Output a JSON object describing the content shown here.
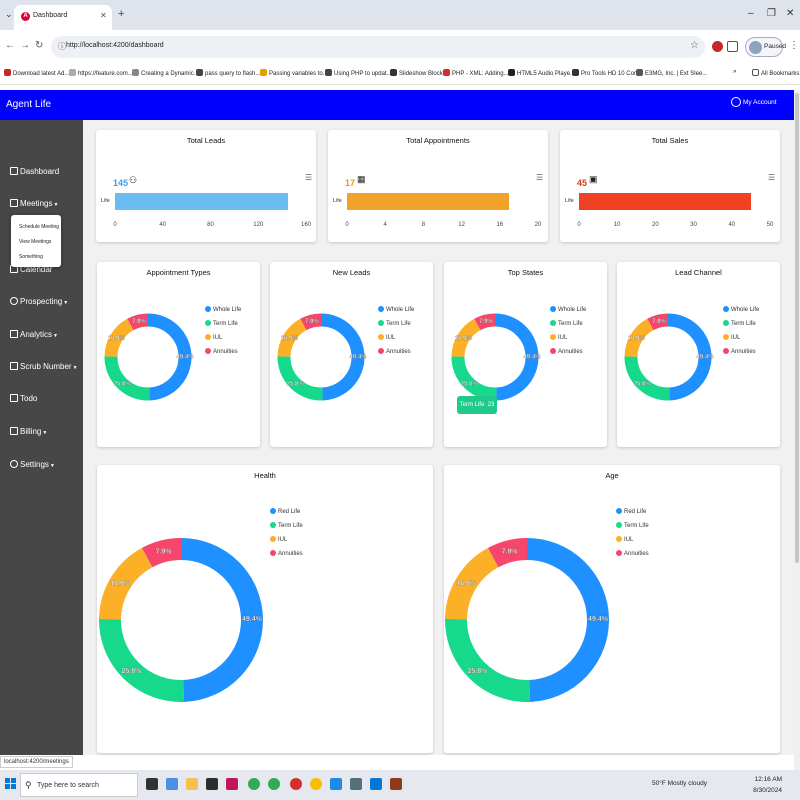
{
  "browser": {
    "tab_title": "Dashboard",
    "url": "http://localhost:4200/dashboard",
    "profile_label": "Paused",
    "bookmarks": [
      "Download latest Ad...",
      "https://feature.com...",
      "Creating a Dynamic...",
      "pass query to flash...",
      "Passing variables to...",
      "Using PHP to updat...",
      "Slideshow Blocks",
      "PHP - XML: Adding...",
      "HTML5 Audio Playe...",
      "Pro Tools HD 10 Cor...",
      "E3MG, Inc. | Ext Slee..."
    ],
    "all_bookmarks": "All Bookmarks",
    "status_url": "localhost:4200/meetings"
  },
  "app": {
    "title": "Agent Life",
    "account": "My Account"
  },
  "sidebar": {
    "items": [
      {
        "label": "Dashboard",
        "caret": false
      },
      {
        "label": "Meetings",
        "caret": true
      },
      {
        "label": "Calendar",
        "caret": false
      },
      {
        "label": "Prospecting",
        "caret": true
      },
      {
        "label": "Analytics",
        "caret": true
      },
      {
        "label": "Scrub Number",
        "caret": true
      },
      {
        "label": "Todo",
        "caret": false
      },
      {
        "label": "Billing",
        "caret": true
      },
      {
        "label": "Settings",
        "caret": true
      }
    ],
    "dropdown": [
      "Schedule Meeting",
      "View Meetings",
      "Something"
    ]
  },
  "kpis": [
    {
      "title": "Total Leads",
      "value": "145",
      "color": "#6bbcf0",
      "num_color": "#3d9ee0",
      "icon": "add-user-icon",
      "category": "Life"
    },
    {
      "title": "Total Appointments",
      "value": "17",
      "color": "#f2a22a",
      "num_color": "#e49a1a",
      "icon": "table-icon",
      "category": "Life"
    },
    {
      "title": "Total Sales",
      "value": "45",
      "color": "#ef4124",
      "num_color": "#d63a1f",
      "icon": "image-icon",
      "category": "Life"
    }
  ],
  "donut_legend_colors": [
    "#1e90ff",
    "#16d98c",
    "#fbb028",
    "#f7466b"
  ],
  "donut_legend_labels": [
    "Whole Life",
    "Term Life",
    "IUL",
    "Annuities"
  ],
  "big_legend_labels": [
    "Red Life",
    "Term Life",
    "IUL",
    "Annuities"
  ],
  "tooltip": {
    "label": "Term Life",
    "value": "23"
  },
  "taskbar": {
    "search_placeholder": "Type here to search",
    "weather": "50°F  Mostly cloudy",
    "time": "12:16 AM",
    "date": "8/30/2024"
  },
  "chart_data": [
    {
      "type": "bar",
      "title": "Total Leads",
      "categories": [
        "Life"
      ],
      "values": [
        145
      ],
      "xlim": [
        0,
        160
      ],
      "ticks": [
        0,
        40,
        80,
        120,
        160
      ]
    },
    {
      "type": "bar",
      "title": "Total Appointments",
      "categories": [
        "Life"
      ],
      "values": [
        17
      ],
      "xlim": [
        0,
        20
      ],
      "ticks": [
        0,
        4,
        8,
        12,
        16,
        20
      ]
    },
    {
      "type": "bar",
      "title": "Total Sales",
      "categories": [
        "Life"
      ],
      "values": [
        45
      ],
      "xlim": [
        0,
        50
      ],
      "ticks": [
        0,
        10,
        20,
        30,
        40,
        50
      ]
    },
    {
      "type": "pie",
      "title": "Appointment Types",
      "categories": [
        "Whole Life",
        "Term Life",
        "IUL",
        "Annuities"
      ],
      "values": [
        49.4,
        25.8,
        16.9,
        7.9
      ]
    },
    {
      "type": "pie",
      "title": "New Leads",
      "categories": [
        "Whole Life",
        "Term Life",
        "IUL",
        "Annuities"
      ],
      "values": [
        49.4,
        25.8,
        16.9,
        7.9
      ]
    },
    {
      "type": "pie",
      "title": "Top States",
      "categories": [
        "Whole Life",
        "Term Life",
        "IUL",
        "Annuities"
      ],
      "values": [
        49.4,
        25.8,
        16.9,
        7.9
      ]
    },
    {
      "type": "pie",
      "title": "Lead Channel",
      "categories": [
        "Whole Life",
        "Term Life",
        "IUL",
        "Annuities"
      ],
      "values": [
        49.4,
        25.8,
        16.9,
        7.9
      ]
    },
    {
      "type": "pie",
      "title": "Health",
      "categories": [
        "Red Life",
        "Term Life",
        "IUL",
        "Annuities"
      ],
      "values": [
        49.4,
        25.8,
        16.9,
        7.9
      ]
    },
    {
      "type": "pie",
      "title": "Age",
      "categories": [
        "Red Life",
        "Term Life",
        "IUL",
        "Annuities"
      ],
      "values": [
        49.4,
        25.8,
        16.9,
        7.9
      ]
    }
  ]
}
